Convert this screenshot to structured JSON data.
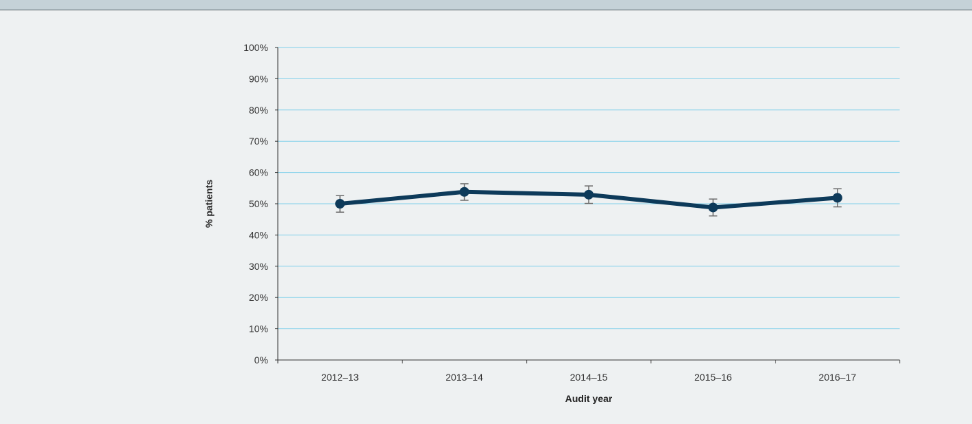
{
  "chart_data": {
    "type": "line",
    "title": "",
    "xlabel": "Audit year",
    "ylabel": "% patients",
    "categories": [
      "2012–13",
      "2013–14",
      "2014–15",
      "2015–16",
      "2016–17"
    ],
    "y_ticks": [
      {
        "value": 0,
        "label": "0%"
      },
      {
        "value": 10,
        "label": "10%"
      },
      {
        "value": 20,
        "label": "20%"
      },
      {
        "value": 30,
        "label": "30%"
      },
      {
        "value": 40,
        "label": "40%"
      },
      {
        "value": 50,
        "label": "50%"
      },
      {
        "value": 60,
        "label": "60%"
      },
      {
        "value": 70,
        "label": "70%"
      },
      {
        "value": 80,
        "label": "80%"
      },
      {
        "value": 90,
        "label": "90%"
      },
      {
        "value": 100,
        "label": "100%"
      }
    ],
    "ylim": [
      0,
      100
    ],
    "series": [
      {
        "values": [
          50.0,
          53.8,
          52.9,
          48.8,
          51.9
        ],
        "error_low": [
          47.3,
          51.1,
          50.1,
          46.1,
          49.0
        ],
        "error_high": [
          52.6,
          56.4,
          55.7,
          51.5,
          54.8
        ]
      }
    ],
    "grid": true,
    "legend": "none",
    "colors": {
      "line": "#0d3a5a",
      "marker": "#0d3a5a",
      "error_bar": "#6b6b6b",
      "grid": "#7fd0ea",
      "axis": "#333333",
      "background": "#eef1f2",
      "top_band": "#c5d2d8"
    }
  }
}
